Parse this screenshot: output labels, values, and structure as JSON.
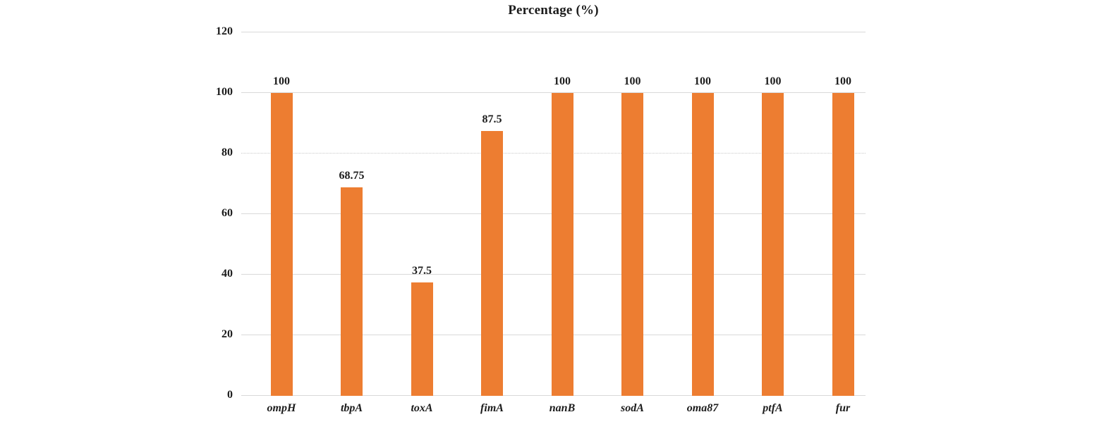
{
  "chart_data": {
    "type": "bar",
    "title": "Percentage (%)",
    "categories": [
      "ompH",
      "tbpA",
      "toxA",
      "fimA",
      "nanB",
      "sodA",
      "oma87",
      "ptfA",
      "fur"
    ],
    "values": [
      100,
      68.75,
      37.5,
      87.5,
      100,
      100,
      100,
      100,
      100
    ],
    "value_labels": [
      "100",
      "68.75",
      "37.5",
      "87.5",
      "100",
      "100",
      "100",
      "100",
      "100"
    ],
    "xlabel": "",
    "ylabel": "",
    "ylim": [
      0,
      120
    ],
    "yticks": [
      0,
      20,
      40,
      60,
      80,
      100,
      120
    ],
    "ytick_labels": [
      "0",
      "20",
      "40",
      "60",
      "80",
      "100",
      "120"
    ],
    "grid": true,
    "dotted_gridline_value": 80,
    "legend": null,
    "bar_color": "#ED7D31",
    "gridline_color": "#d9d9d9",
    "text_color": "#1c1c1c",
    "background_color": "#ffffff"
  }
}
